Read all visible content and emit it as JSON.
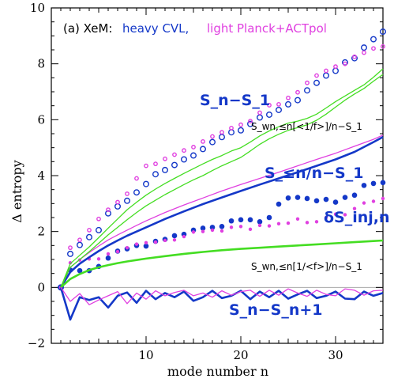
{
  "chart_data": {
    "type": "line",
    "title_prefix": "(a) XeM:",
    "title_blue": "heavy CVL,",
    "title_magenta": "light Planck+ACTpol",
    "xlabel": "mode number n",
    "ylabel": "Δ entropy",
    "xlim": [
      0,
      35
    ],
    "ylim": [
      -2,
      10
    ],
    "x_ticks": [
      10,
      20,
      30
    ],
    "y_ticks": [
      -2,
      0,
      2,
      4,
      6,
      8,
      10
    ],
    "grid": false,
    "annotations": {
      "sn_s1": "S_n−S_1",
      "harm_upper": "S_wn,≤n[<1/f>]/n−S_1",
      "sle": "S_≤n/n−S_1",
      "dsinj": "δS_inj,n",
      "harm_lower": "S_wn,≤n[1/<f>]/n−S_1",
      "snsn1": "S_n−S_n+1"
    },
    "colors": {
      "heavy": "#1438c8",
      "light": "#e040e0",
      "green": "#44dd22",
      "zero": "#aaaaaa"
    },
    "series": [
      {
        "style": "open-circle",
        "color": "#1438c8",
        "x": [
          1,
          2,
          3,
          4,
          5,
          6,
          7,
          8,
          9,
          10,
          11,
          12,
          13,
          14,
          15,
          16,
          17,
          18,
          19,
          20,
          21,
          22,
          23,
          24,
          25,
          26,
          27,
          28,
          29,
          30,
          31,
          32,
          33,
          34,
          35
        ],
        "y": [
          0,
          1.2,
          1.52,
          1.8,
          2.05,
          2.65,
          2.9,
          3.1,
          3.4,
          3.7,
          4.05,
          4.2,
          4.38,
          4.58,
          4.72,
          4.95,
          5.2,
          5.38,
          5.55,
          5.62,
          5.85,
          6.08,
          6.18,
          6.35,
          6.55,
          6.7,
          7.05,
          7.32,
          7.58,
          7.75,
          8.05,
          8.2,
          8.58,
          8.88,
          9.15
        ]
      },
      {
        "style": "small-open-circle",
        "color": "#e040e0",
        "x": [
          1,
          2,
          3,
          4,
          5,
          6,
          7,
          8,
          9,
          10,
          11,
          12,
          13,
          14,
          15,
          16,
          17,
          18,
          19,
          20,
          21,
          22,
          23,
          24,
          25,
          26,
          27,
          28,
          29,
          30,
          31,
          32,
          33,
          34,
          35
        ],
        "y": [
          0,
          1.42,
          1.7,
          2.05,
          2.45,
          2.78,
          3.05,
          3.35,
          3.9,
          4.35,
          4.42,
          4.6,
          4.75,
          4.9,
          5.02,
          5.22,
          5.4,
          5.55,
          5.7,
          5.82,
          5.95,
          6.25,
          6.52,
          6.55,
          6.78,
          6.98,
          7.32,
          7.58,
          7.75,
          7.9,
          8.0,
          8.25,
          8.4,
          8.55,
          8.62
        ]
      },
      {
        "style": "filled-circle",
        "color": "#1438c8",
        "x": [
          1,
          2,
          3,
          4,
          5,
          6,
          7,
          8,
          9,
          10,
          11,
          12,
          13,
          14,
          15,
          16,
          17,
          18,
          19,
          20,
          21,
          22,
          23,
          24,
          25,
          26,
          27,
          28,
          29,
          30,
          31,
          32,
          33,
          34,
          35
        ],
        "y": [
          0,
          0.62,
          0.6,
          0.6,
          0.75,
          1.05,
          1.3,
          1.38,
          1.5,
          1.48,
          1.65,
          1.72,
          1.85,
          1.9,
          2.05,
          2.12,
          2.15,
          2.18,
          2.38,
          2.42,
          2.42,
          2.35,
          2.5,
          2.98,
          3.2,
          3.22,
          3.18,
          3.1,
          3.15,
          3.05,
          3.22,
          3.3,
          3.65,
          3.72,
          3.75
        ]
      },
      {
        "style": "small-filled-circle",
        "color": "#e040e0",
        "x": [
          1,
          2,
          3,
          4,
          5,
          6,
          7,
          8,
          9,
          10,
          11,
          12,
          13,
          14,
          15,
          16,
          17,
          18,
          19,
          20,
          21,
          22,
          23,
          24,
          25,
          26,
          27,
          28,
          29,
          30,
          31,
          32,
          33,
          34,
          35
        ],
        "y": [
          0,
          0.88,
          0.98,
          1.02,
          1.02,
          1.2,
          1.28,
          1.42,
          1.55,
          1.6,
          1.62,
          1.68,
          1.7,
          1.82,
          1.98,
          2.0,
          2.05,
          2.02,
          2.15,
          2.18,
          2.08,
          2.22,
          2.2,
          2.28,
          2.3,
          2.45,
          2.32,
          2.35,
          2.5,
          2.62,
          2.6,
          2.82,
          3.02,
          3.08,
          3.18
        ]
      },
      {
        "style": "thick-line",
        "color": "#1438c8",
        "x": [
          1,
          2,
          3,
          4,
          5,
          6,
          7,
          8,
          9,
          10,
          12,
          14,
          16,
          18,
          20,
          22,
          24,
          26,
          28,
          30,
          32,
          34,
          35
        ],
        "y": [
          0,
          0.55,
          0.85,
          1.08,
          1.3,
          1.5,
          1.68,
          1.85,
          2.0,
          2.15,
          2.45,
          2.72,
          2.98,
          3.22,
          3.45,
          3.68,
          3.9,
          4.12,
          4.35,
          4.58,
          4.85,
          5.2,
          5.38
        ]
      },
      {
        "style": "line",
        "color": "#e040e0",
        "x": [
          1,
          2,
          3,
          4,
          5,
          6,
          7,
          8,
          9,
          10,
          12,
          14,
          16,
          18,
          20,
          22,
          24,
          26,
          28,
          30,
          32,
          34,
          35
        ],
        "y": [
          0,
          0.72,
          1.0,
          1.25,
          1.48,
          1.7,
          1.88,
          2.05,
          2.22,
          2.38,
          2.68,
          2.95,
          3.2,
          3.45,
          3.68,
          3.9,
          4.12,
          4.35,
          4.58,
          4.8,
          5.05,
          5.3,
          5.45
        ]
      },
      {
        "style": "thick-line",
        "color": "#44dd22",
        "x": [
          1,
          2,
          3,
          4,
          5,
          6,
          7,
          8,
          9,
          10,
          12,
          14,
          16,
          18,
          20,
          22,
          24,
          26,
          28,
          30,
          32,
          34,
          35
        ],
        "y": [
          0,
          0.3,
          0.48,
          0.62,
          0.72,
          0.8,
          0.87,
          0.93,
          0.98,
          1.03,
          1.12,
          1.2,
          1.27,
          1.33,
          1.38,
          1.42,
          1.46,
          1.5,
          1.54,
          1.58,
          1.62,
          1.66,
          1.68
        ]
      },
      {
        "style": "line",
        "color": "#44dd22",
        "x": [
          1,
          2,
          3,
          4,
          5,
          6,
          7,
          8,
          9,
          10,
          11,
          12,
          13,
          14,
          15,
          16,
          17,
          18,
          19,
          20,
          21,
          22,
          23,
          24,
          25,
          26,
          27,
          28,
          29,
          30,
          31,
          32,
          33,
          34,
          35
        ],
        "y": [
          0,
          0.85,
          1.15,
          1.45,
          1.78,
          2.12,
          2.45,
          2.78,
          3.05,
          3.3,
          3.52,
          3.72,
          3.9,
          4.08,
          4.25,
          4.42,
          4.58,
          4.72,
          4.88,
          5.0,
          5.2,
          5.42,
          5.6,
          5.75,
          5.88,
          5.95,
          6.05,
          6.2,
          6.42,
          6.65,
          6.85,
          7.05,
          7.25,
          7.52,
          7.82
        ]
      },
      {
        "style": "line",
        "color": "#44dd22",
        "x": [
          1,
          2,
          3,
          4,
          5,
          6,
          7,
          8,
          9,
          10,
          11,
          12,
          13,
          14,
          15,
          16,
          17,
          18,
          19,
          20,
          21,
          22,
          23,
          24,
          25,
          26,
          27,
          28,
          29,
          30,
          31,
          32,
          33,
          34,
          35
        ],
        "y": [
          0,
          0.72,
          1.0,
          1.28,
          1.58,
          1.88,
          2.15,
          2.42,
          2.68,
          2.92,
          3.12,
          3.32,
          3.5,
          3.68,
          3.85,
          4.0,
          4.18,
          4.35,
          4.5,
          4.65,
          4.88,
          5.12,
          5.32,
          5.48,
          5.62,
          5.72,
          5.82,
          5.98,
          6.2,
          6.45,
          6.7,
          6.92,
          7.12,
          7.38,
          7.62
        ]
      },
      {
        "style": "thick-line",
        "color": "#1438c8",
        "x": [
          1,
          2,
          3,
          4,
          5,
          6,
          7,
          8,
          9,
          10,
          11,
          12,
          13,
          14,
          15,
          16,
          17,
          18,
          19,
          20,
          21,
          22,
          23,
          24,
          25,
          26,
          27,
          28,
          29,
          30,
          31,
          32,
          33,
          34,
          35
        ],
        "y": [
          0,
          -1.15,
          -0.35,
          -0.45,
          -0.35,
          -0.72,
          -0.3,
          -0.18,
          -0.55,
          -0.12,
          -0.42,
          -0.2,
          -0.35,
          -0.15,
          -0.48,
          -0.35,
          -0.12,
          -0.38,
          -0.3,
          -0.12,
          -0.42,
          -0.15,
          -0.35,
          -0.12,
          -0.4,
          -0.25,
          -0.12,
          -0.38,
          -0.3,
          -0.15,
          -0.4,
          -0.42,
          -0.15,
          -0.3,
          -0.2
        ]
      },
      {
        "style": "line",
        "color": "#e040e0",
        "x": [
          1,
          2,
          3,
          4,
          5,
          6,
          7,
          8,
          9,
          10,
          11,
          12,
          13,
          14,
          15,
          16,
          17,
          18,
          19,
          20,
          21,
          22,
          23,
          24,
          25,
          26,
          27,
          28,
          29,
          30,
          31,
          32,
          33,
          34,
          35
        ],
        "y": [
          0,
          -0.5,
          -0.22,
          -0.62,
          -0.45,
          -0.3,
          -0.15,
          -0.58,
          -0.2,
          -0.42,
          -0.12,
          -0.3,
          -0.18,
          -0.1,
          -0.3,
          -0.2,
          -0.35,
          -0.12,
          -0.28,
          -0.15,
          -0.1,
          -0.32,
          -0.1,
          -0.28,
          -0.05,
          -0.2,
          -0.32,
          -0.1,
          -0.25,
          -0.3,
          -0.05,
          -0.1,
          -0.28,
          -0.12,
          -0.1
        ]
      }
    ]
  }
}
